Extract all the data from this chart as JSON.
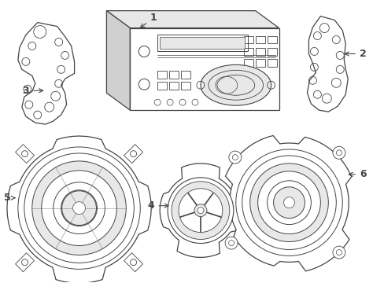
{
  "background_color": "#ffffff",
  "line_color": "#444444",
  "figsize": [
    4.89,
    3.6
  ],
  "dpi": 100,
  "label_fontsize": 9
}
